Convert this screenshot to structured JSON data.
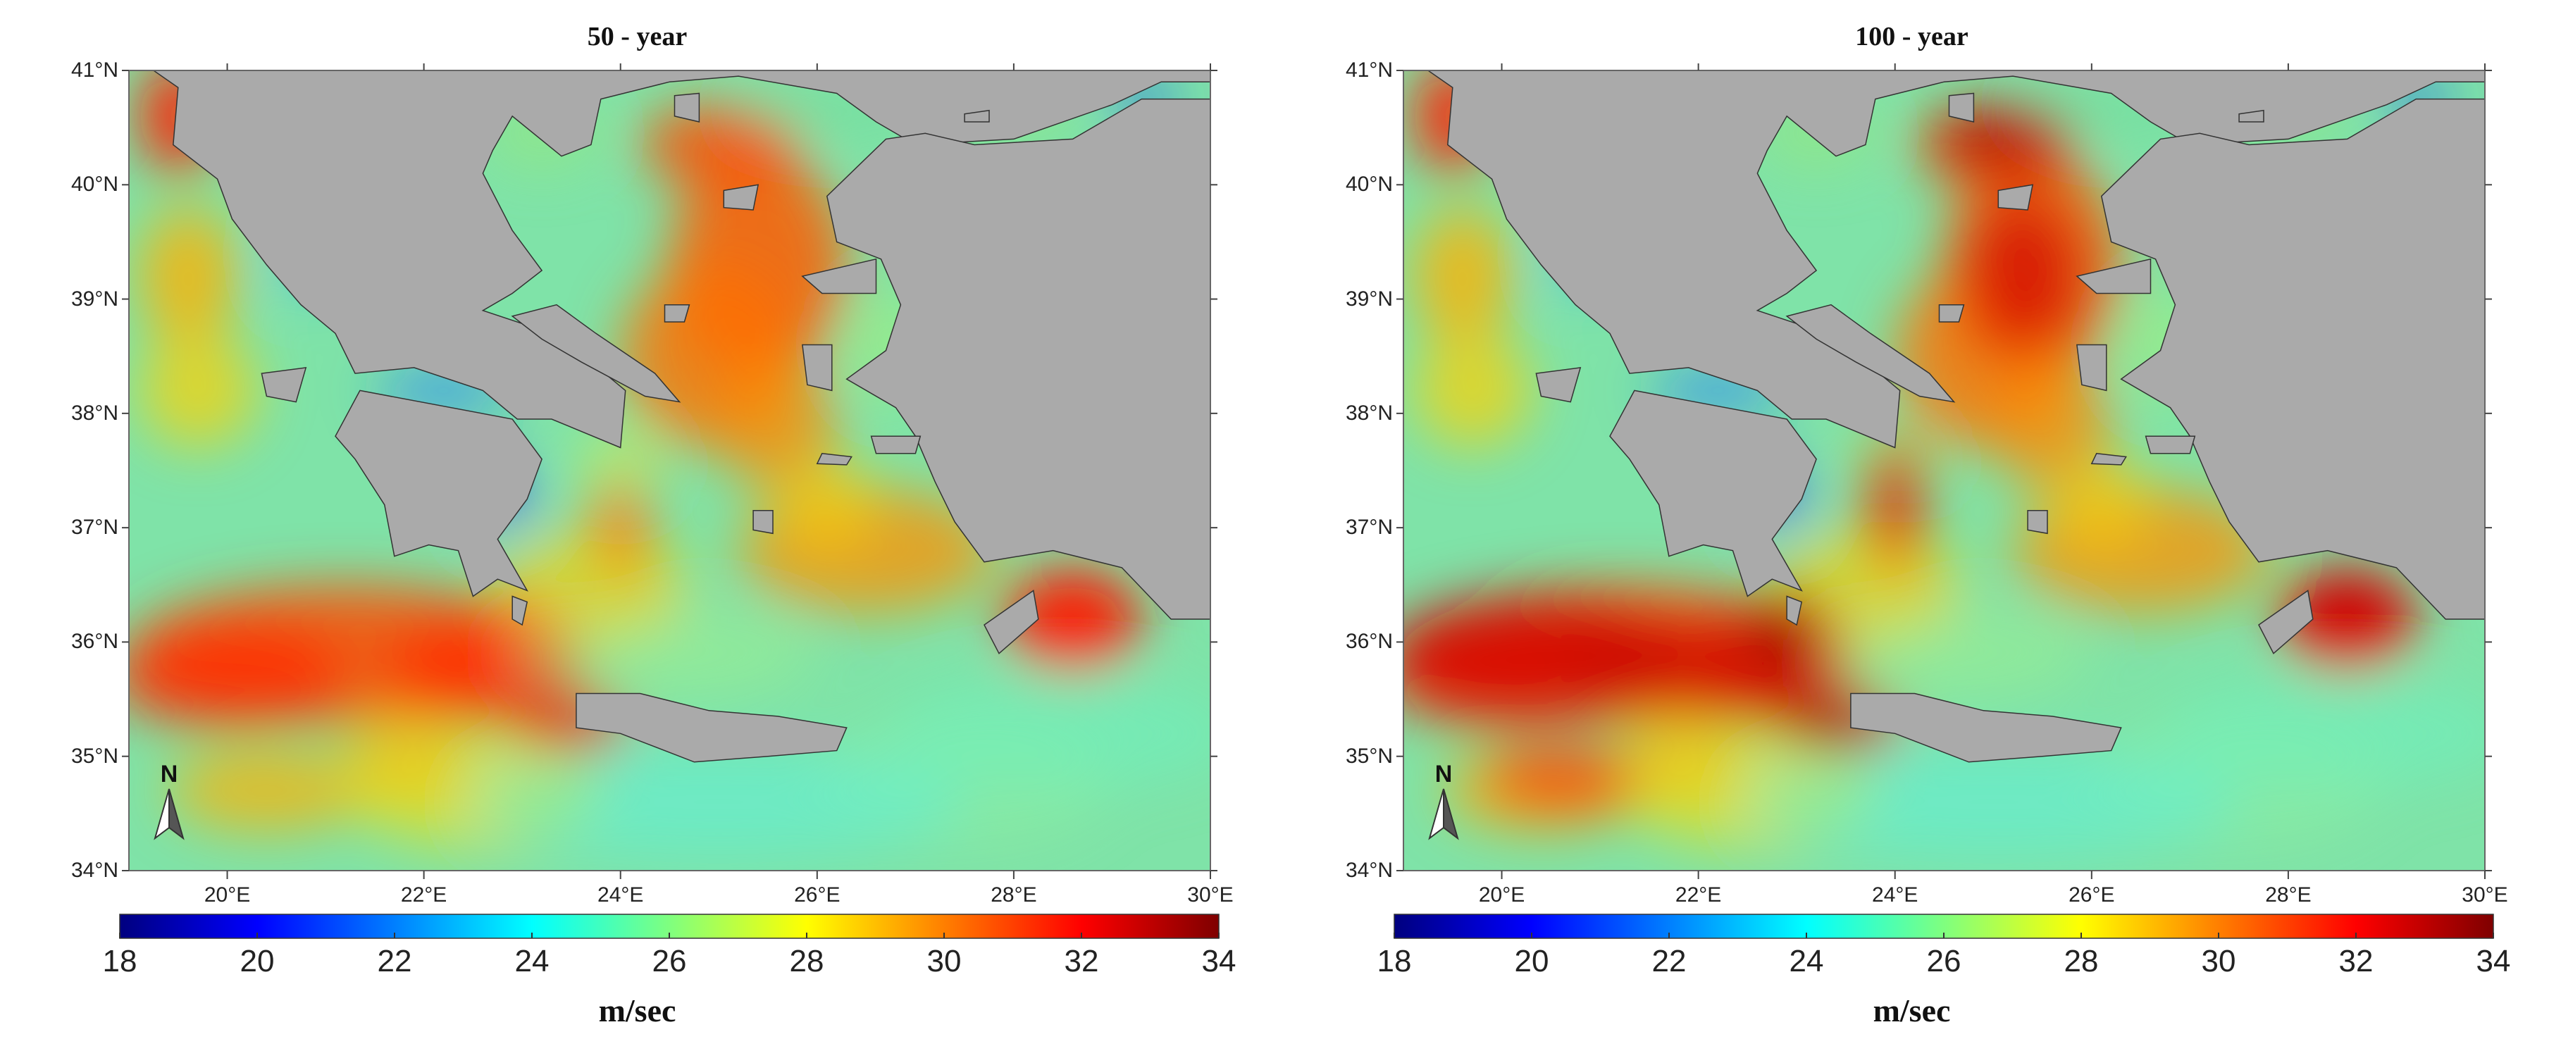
{
  "panels": [
    {
      "title": "50 - year",
      "variant": 50
    },
    {
      "title": "100 - year",
      "variant": 100
    }
  ],
  "lat_ticks": [
    "34°N",
    "35°N",
    "36°N",
    "37°N",
    "38°N",
    "39°N",
    "40°N",
    "41°N"
  ],
  "lon_ticks": [
    "20°E",
    "22°E",
    "24°E",
    "26°E",
    "28°E",
    "30°E"
  ],
  "colorbar": {
    "ticks": [
      "18",
      "20",
      "22",
      "24",
      "26",
      "28",
      "30",
      "32",
      "34"
    ],
    "unit": "m/sec",
    "stops": [
      "#00007f",
      "#0000ff",
      "#007fff",
      "#00ffff",
      "#7fff7f",
      "#ffff00",
      "#ff7f00",
      "#ff0000",
      "#7f0000"
    ]
  },
  "north_arrow": "N",
  "colors": {
    "land": "#aaaaaa",
    "sea_base": "#7fe3a8",
    "frame": "#666666"
  }
}
